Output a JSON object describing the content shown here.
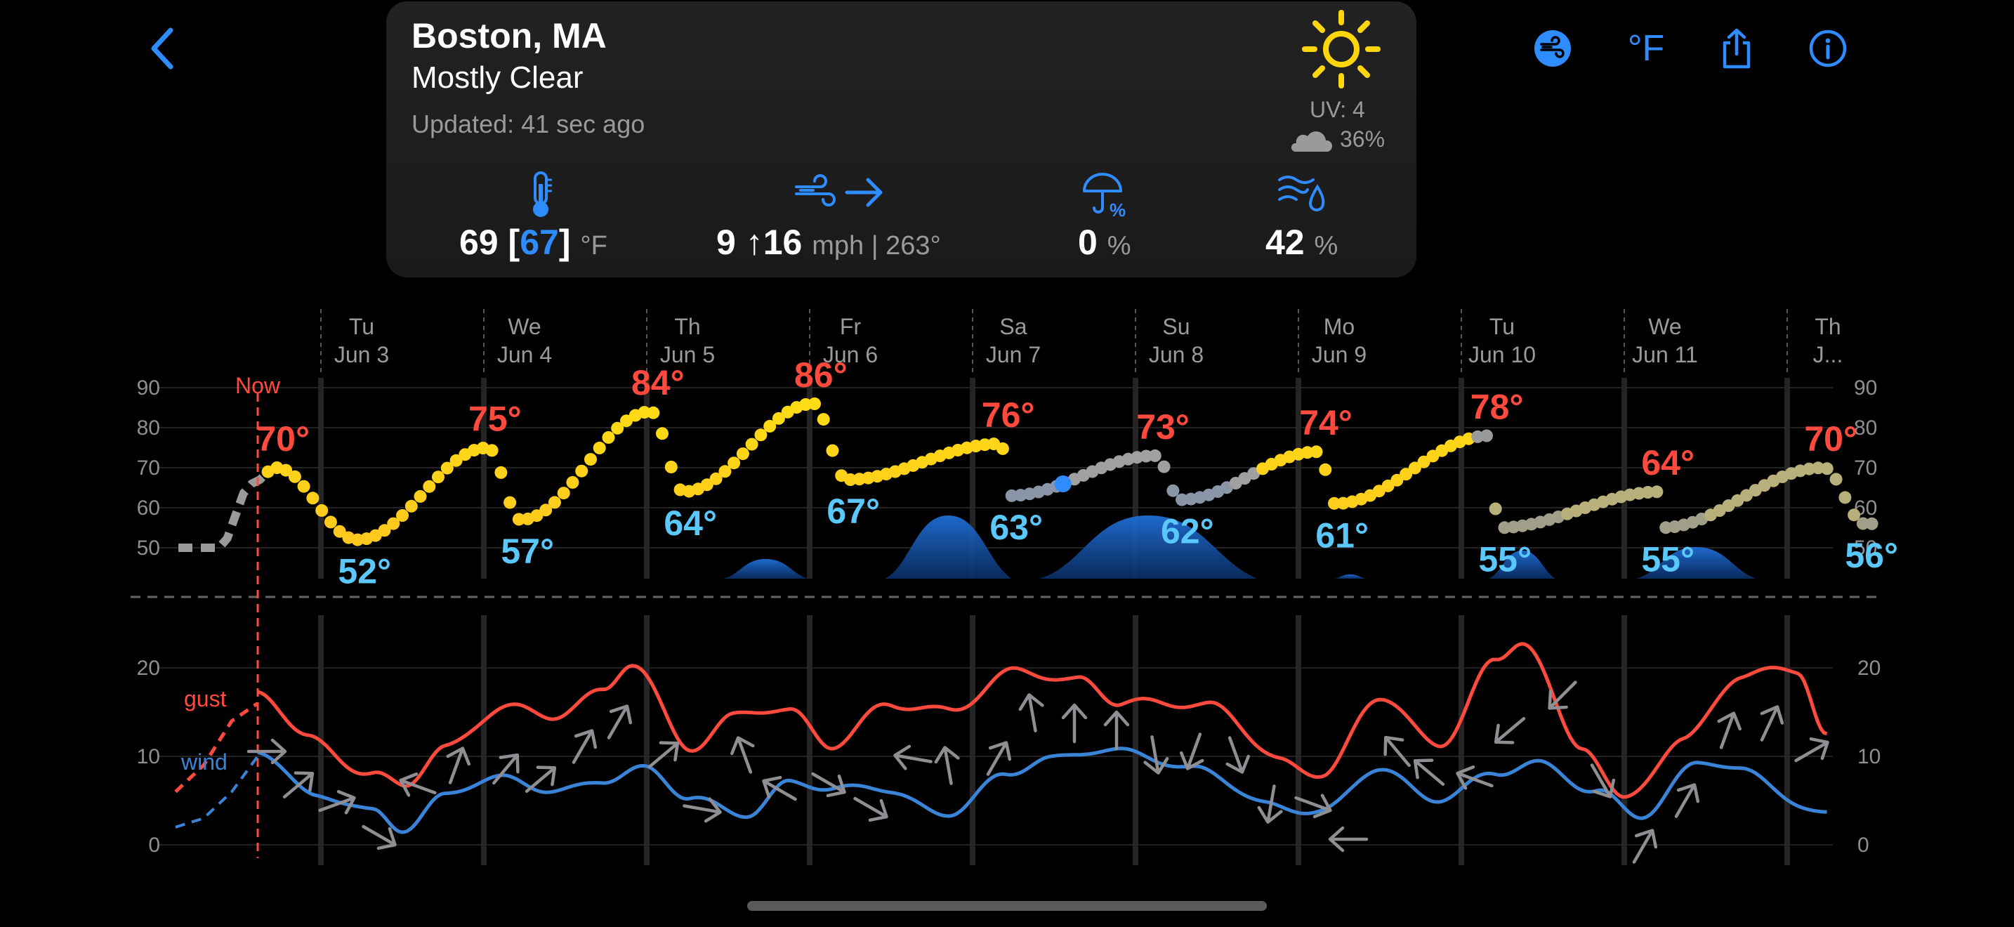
{
  "header": {
    "back_icon": "chevron-left-icon",
    "actions": [
      {
        "name": "wind-toggle-icon"
      },
      {
        "name": "unit-toggle",
        "label": "°F"
      },
      {
        "name": "share-icon"
      },
      {
        "name": "info-icon"
      }
    ]
  },
  "current": {
    "city": "Boston, MA",
    "condition": "Mostly Clear",
    "updated": "Updated: 41 sec ago",
    "weather_icon": "sun-icon",
    "uv": "UV: 4",
    "cloud_cover": "36%",
    "temp": "69",
    "feels_like": "67",
    "temp_unit": "°F",
    "wind": "9",
    "gust": "16",
    "wind_unit": "mph | 263°",
    "precip_chance": "0",
    "precip_unit": "%",
    "humidity": "42",
    "humidity_unit": "%",
    "accent": "#2f8cff"
  },
  "chart_data": [
    {
      "type": "line",
      "title": "",
      "y_ticks": [
        "90",
        "80",
        "70",
        "60",
        "50"
      ],
      "ylim": [
        45,
        92
      ],
      "now_label": "Now",
      "days": [
        {
          "dow": "Tu",
          "date": "Jun 3"
        },
        {
          "dow": "We",
          "date": "Jun 4"
        },
        {
          "dow": "Th",
          "date": "Jun 5"
        },
        {
          "dow": "Fr",
          "date": "Jun 6"
        },
        {
          "dow": "Sa",
          "date": "Jun 7"
        },
        {
          "dow": "Su",
          "date": "Jun 8"
        },
        {
          "dow": "Mo",
          "date": "Jun 9"
        },
        {
          "dow": "Tu",
          "date": "Jun 10"
        },
        {
          "dow": "We",
          "date": "Jun 11"
        },
        {
          "dow": "Th",
          "date": "J..."
        }
      ],
      "highs": [
        {
          "label": "70°",
          "t": 0.1,
          "v": 70
        },
        {
          "label": "75°",
          "t": 1.4,
          "v": 75
        },
        {
          "label": "84°",
          "t": 2.4,
          "v": 84
        },
        {
          "label": "86°",
          "t": 3.4,
          "v": 86
        },
        {
          "label": "76°",
          "t": 4.55,
          "v": 76
        },
        {
          "label": "73°",
          "t": 5.5,
          "v": 73
        },
        {
          "label": "74°",
          "t": 6.5,
          "v": 74
        },
        {
          "label": "78°",
          "t": 7.55,
          "v": 78
        },
        {
          "label": "64°",
          "t": 8.6,
          "v": 64
        },
        {
          "label": "70°",
          "t": 9.6,
          "v": 70
        }
      ],
      "lows": [
        {
          "label": "52°",
          "t": 0.6,
          "v": 52
        },
        {
          "label": "57°",
          "t": 1.6,
          "v": 57
        },
        {
          "label": "64°",
          "t": 2.6,
          "v": 64
        },
        {
          "label": "67°",
          "t": 3.6,
          "v": 67
        },
        {
          "label": "63°",
          "t": 4.6,
          "v": 63
        },
        {
          "label": "62°",
          "t": 5.65,
          "v": 62
        },
        {
          "label": "61°",
          "t": 6.6,
          "v": 61
        },
        {
          "label": "55°",
          "t": 7.6,
          "v": 55
        },
        {
          "label": "55°",
          "t": 8.6,
          "v": 55
        },
        {
          "label": "56°",
          "t": 9.85,
          "v": 56
        }
      ],
      "high_color": "#ff4a3d",
      "low_color": "#5ac8fa"
    },
    {
      "type": "line",
      "title": "",
      "y_ticks": [
        "20",
        "10",
        "0"
      ],
      "ylim": [
        0,
        25
      ],
      "series": [
        {
          "name": "gust",
          "color": "#ff4a3d"
        },
        {
          "name": "wind",
          "color": "#3a84d8"
        }
      ]
    }
  ]
}
